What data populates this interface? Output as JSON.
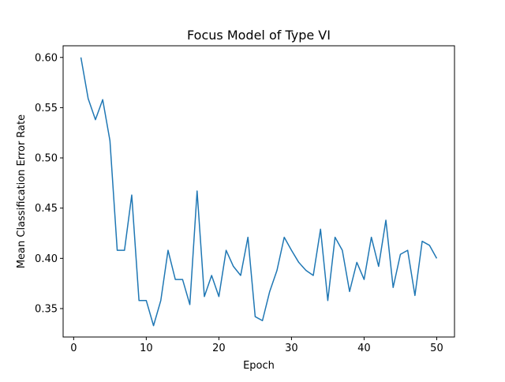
{
  "chart_data": {
    "type": "line",
    "title": "Focus Model of Type VI",
    "xlabel": "Epoch",
    "ylabel": "Mean Classification Error Rate",
    "xlim": [
      -1.45,
      52.45
    ],
    "ylim": [
      0.3217,
      0.6116
    ],
    "xticks": [
      0,
      10,
      20,
      30,
      40,
      50
    ],
    "yticks": [
      0.35,
      0.4,
      0.45,
      0.5,
      0.55,
      0.6
    ],
    "ytick_labels": [
      "0.35",
      "0.40",
      "0.45",
      "0.50",
      "0.55",
      "0.60"
    ],
    "grid": false,
    "series": [
      {
        "color": "#1f77b4",
        "x": [
          1,
          2,
          3,
          4,
          5,
          6,
          7,
          8,
          9,
          10,
          11,
          12,
          13,
          14,
          15,
          16,
          17,
          18,
          19,
          20,
          21,
          22,
          23,
          24,
          25,
          26,
          27,
          28,
          29,
          30,
          31,
          32,
          33,
          34,
          35,
          36,
          37,
          38,
          39,
          40,
          41,
          42,
          43,
          44,
          45,
          46,
          47,
          48,
          49,
          50
        ],
        "y": [
          0.6,
          0.559,
          0.538,
          0.558,
          0.517,
          0.408,
          0.408,
          0.463,
          0.358,
          0.358,
          0.333,
          0.358,
          0.408,
          0.379,
          0.379,
          0.354,
          0.467,
          0.362,
          0.383,
          0.362,
          0.408,
          0.392,
          0.383,
          0.421,
          0.342,
          0.338,
          0.367,
          0.388,
          0.421,
          0.408,
          0.396,
          0.388,
          0.383,
          0.429,
          0.358,
          0.421,
          0.408,
          0.367,
          0.396,
          0.379,
          0.421,
          0.392,
          0.438,
          0.371,
          0.404,
          0.408,
          0.363,
          0.417,
          0.413,
          0.4
        ]
      }
    ]
  }
}
